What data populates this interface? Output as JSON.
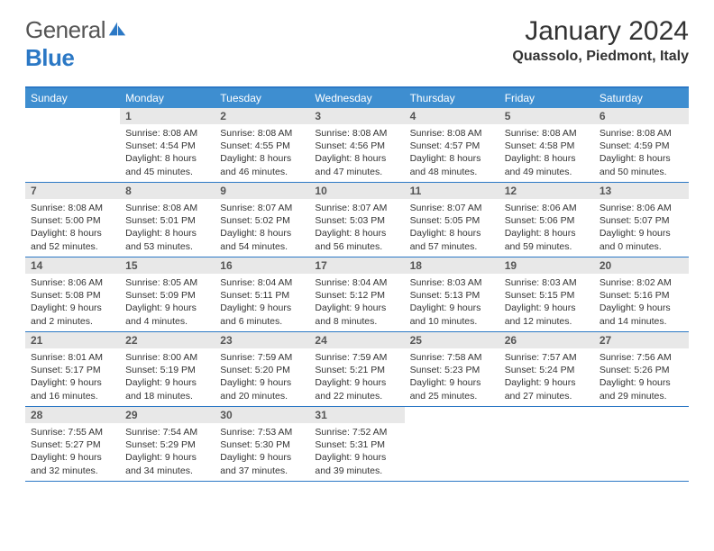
{
  "brand": {
    "part1": "General",
    "part2": "Blue"
  },
  "title": "January 2024",
  "location": "Quassolo, Piedmont, Italy",
  "colors": {
    "header_bg": "#3e8ed0",
    "border": "#2b78c5",
    "daynum_bg": "#e8e8e8",
    "text": "#333333"
  },
  "layout": {
    "columns": 7,
    "first_weekday_index": 1,
    "days_in_month": 31
  },
  "day_names": [
    "Sunday",
    "Monday",
    "Tuesday",
    "Wednesday",
    "Thursday",
    "Friday",
    "Saturday"
  ],
  "days": [
    {
      "n": 1,
      "sunrise": "8:08 AM",
      "sunset": "4:54 PM",
      "daylight": "8 hours and 45 minutes."
    },
    {
      "n": 2,
      "sunrise": "8:08 AM",
      "sunset": "4:55 PM",
      "daylight": "8 hours and 46 minutes."
    },
    {
      "n": 3,
      "sunrise": "8:08 AM",
      "sunset": "4:56 PM",
      "daylight": "8 hours and 47 minutes."
    },
    {
      "n": 4,
      "sunrise": "8:08 AM",
      "sunset": "4:57 PM",
      "daylight": "8 hours and 48 minutes."
    },
    {
      "n": 5,
      "sunrise": "8:08 AM",
      "sunset": "4:58 PM",
      "daylight": "8 hours and 49 minutes."
    },
    {
      "n": 6,
      "sunrise": "8:08 AM",
      "sunset": "4:59 PM",
      "daylight": "8 hours and 50 minutes."
    },
    {
      "n": 7,
      "sunrise": "8:08 AM",
      "sunset": "5:00 PM",
      "daylight": "8 hours and 52 minutes."
    },
    {
      "n": 8,
      "sunrise": "8:08 AM",
      "sunset": "5:01 PM",
      "daylight": "8 hours and 53 minutes."
    },
    {
      "n": 9,
      "sunrise": "8:07 AM",
      "sunset": "5:02 PM",
      "daylight": "8 hours and 54 minutes."
    },
    {
      "n": 10,
      "sunrise": "8:07 AM",
      "sunset": "5:03 PM",
      "daylight": "8 hours and 56 minutes."
    },
    {
      "n": 11,
      "sunrise": "8:07 AM",
      "sunset": "5:05 PM",
      "daylight": "8 hours and 57 minutes."
    },
    {
      "n": 12,
      "sunrise": "8:06 AM",
      "sunset": "5:06 PM",
      "daylight": "8 hours and 59 minutes."
    },
    {
      "n": 13,
      "sunrise": "8:06 AM",
      "sunset": "5:07 PM",
      "daylight": "9 hours and 0 minutes."
    },
    {
      "n": 14,
      "sunrise": "8:06 AM",
      "sunset": "5:08 PM",
      "daylight": "9 hours and 2 minutes."
    },
    {
      "n": 15,
      "sunrise": "8:05 AM",
      "sunset": "5:09 PM",
      "daylight": "9 hours and 4 minutes."
    },
    {
      "n": 16,
      "sunrise": "8:04 AM",
      "sunset": "5:11 PM",
      "daylight": "9 hours and 6 minutes."
    },
    {
      "n": 17,
      "sunrise": "8:04 AM",
      "sunset": "5:12 PM",
      "daylight": "9 hours and 8 minutes."
    },
    {
      "n": 18,
      "sunrise": "8:03 AM",
      "sunset": "5:13 PM",
      "daylight": "9 hours and 10 minutes."
    },
    {
      "n": 19,
      "sunrise": "8:03 AM",
      "sunset": "5:15 PM",
      "daylight": "9 hours and 12 minutes."
    },
    {
      "n": 20,
      "sunrise": "8:02 AM",
      "sunset": "5:16 PM",
      "daylight": "9 hours and 14 minutes."
    },
    {
      "n": 21,
      "sunrise": "8:01 AM",
      "sunset": "5:17 PM",
      "daylight": "9 hours and 16 minutes."
    },
    {
      "n": 22,
      "sunrise": "8:00 AM",
      "sunset": "5:19 PM",
      "daylight": "9 hours and 18 minutes."
    },
    {
      "n": 23,
      "sunrise": "7:59 AM",
      "sunset": "5:20 PM",
      "daylight": "9 hours and 20 minutes."
    },
    {
      "n": 24,
      "sunrise": "7:59 AM",
      "sunset": "5:21 PM",
      "daylight": "9 hours and 22 minutes."
    },
    {
      "n": 25,
      "sunrise": "7:58 AM",
      "sunset": "5:23 PM",
      "daylight": "9 hours and 25 minutes."
    },
    {
      "n": 26,
      "sunrise": "7:57 AM",
      "sunset": "5:24 PM",
      "daylight": "9 hours and 27 minutes."
    },
    {
      "n": 27,
      "sunrise": "7:56 AM",
      "sunset": "5:26 PM",
      "daylight": "9 hours and 29 minutes."
    },
    {
      "n": 28,
      "sunrise": "7:55 AM",
      "sunset": "5:27 PM",
      "daylight": "9 hours and 32 minutes."
    },
    {
      "n": 29,
      "sunrise": "7:54 AM",
      "sunset": "5:29 PM",
      "daylight": "9 hours and 34 minutes."
    },
    {
      "n": 30,
      "sunrise": "7:53 AM",
      "sunset": "5:30 PM",
      "daylight": "9 hours and 37 minutes."
    },
    {
      "n": 31,
      "sunrise": "7:52 AM",
      "sunset": "5:31 PM",
      "daylight": "9 hours and 39 minutes."
    }
  ],
  "labels": {
    "sunrise": "Sunrise:",
    "sunset": "Sunset:",
    "daylight": "Daylight:"
  }
}
